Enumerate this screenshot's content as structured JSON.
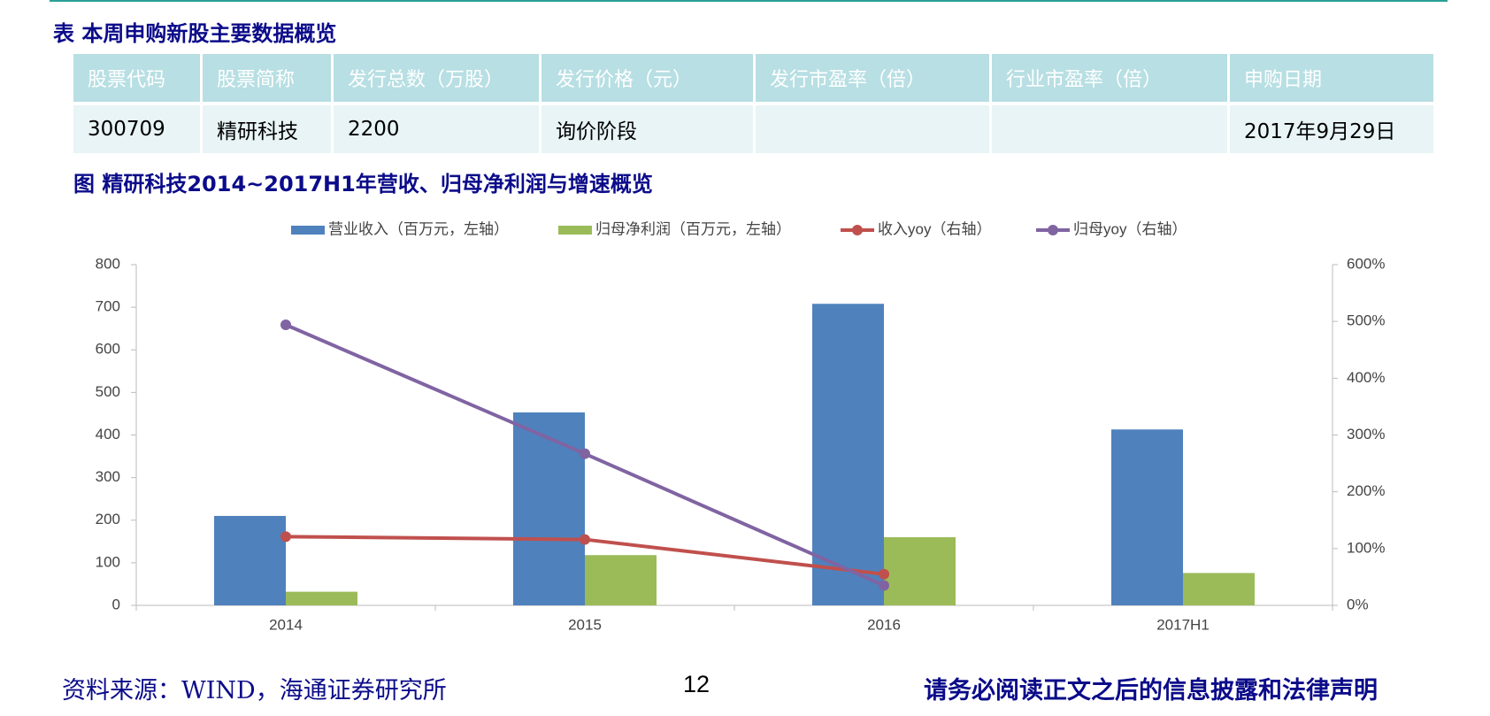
{
  "table_title": "表 本周申购新股主要数据概览",
  "table": {
    "header": [
      "股票代码",
      "股票简称",
      "发行总数（万股）",
      "发行价格（元）",
      "发行市盈率（倍）",
      "行业市盈率（倍）",
      "申购日期"
    ],
    "rows": [
      [
        "300709",
        "精研科技",
        "2200",
        "询价阶段",
        null,
        null,
        "2017年9月29日"
      ]
    ]
  },
  "chart_data": {
    "type": "bar-line",
    "title": "图 精研科技2014~2017H1年营收、归母净利润与增速概览",
    "categories": [
      "2014",
      "2015",
      "2016",
      "2017H1"
    ],
    "series": [
      {
        "name": "营业收入（百万元，左轴）",
        "type": "bar",
        "color": "#4f81bd",
        "values": [
          210,
          453,
          708,
          413
        ]
      },
      {
        "name": "归母净利润（百万元，左轴）",
        "type": "bar",
        "color": "#9bbb59",
        "values": [
          32,
          118,
          160,
          76
        ]
      },
      {
        "name": "收入yoy（右轴）",
        "type": "line",
        "axis": "y2",
        "color": "#c0504d",
        "values": [
          121,
          116,
          55,
          null
        ]
      },
      {
        "name": "归母yoy（右轴）",
        "type": "line",
        "axis": "y2",
        "color": "#8064a2",
        "values": [
          494,
          267,
          35,
          null
        ]
      }
    ],
    "ylim": [
      0,
      800
    ],
    "yticks": [
      0,
      100,
      200,
      300,
      400,
      500,
      600,
      700,
      800
    ],
    "y2lim": [
      0,
      600
    ],
    "y2ticks": [
      {
        "value": 0,
        "label": "0%"
      },
      {
        "value": 100,
        "label": "100%"
      },
      {
        "value": 200,
        "label": "200%"
      },
      {
        "value": 300,
        "label": "300%"
      },
      {
        "value": 400,
        "label": "400%"
      },
      {
        "value": 500,
        "label": "500%"
      },
      {
        "value": 600,
        "label": "600%"
      }
    ],
    "legend": "top"
  },
  "footer": {
    "source": "资料来源：WIND，海通证券研究所",
    "page": "12",
    "disclaimer": "请务必阅读正文之后的信息披露和法律声明"
  }
}
